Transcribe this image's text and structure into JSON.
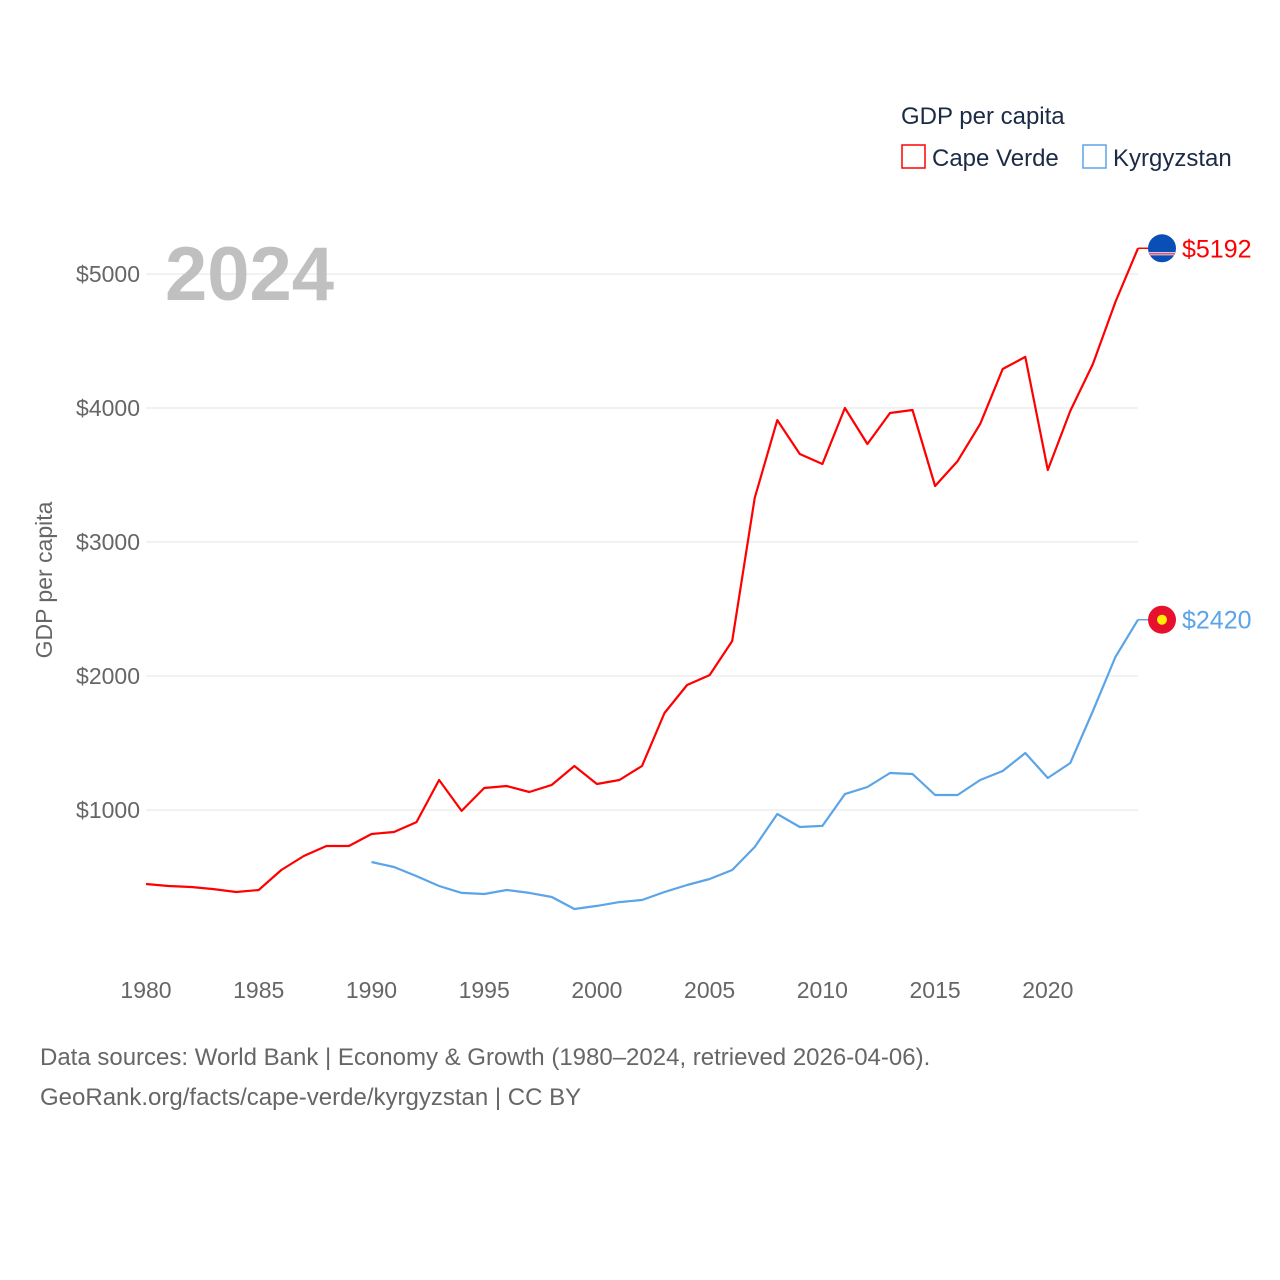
{
  "chart_data": {
    "type": "line",
    "year_label": "2024",
    "ylabel": "GDP per capita",
    "legend_title": "GDP per capita",
    "legend_position": "top-right",
    "ylim": [
      0,
      5400
    ],
    "xlim": [
      1980,
      2024
    ],
    "yticks": [
      1000,
      2000,
      3000,
      4000,
      5000
    ],
    "ytick_labels": [
      "$1000",
      "$2000",
      "$3000",
      "$4000",
      "$5000"
    ],
    "xticks": [
      1980,
      1985,
      1990,
      1995,
      2000,
      2005,
      2010,
      2015,
      2020
    ],
    "xtick_labels": [
      "1980",
      "1985",
      "1990",
      "1995",
      "2000",
      "2005",
      "2010",
      "2015",
      "2020"
    ],
    "grid": true,
    "series": [
      {
        "name": "Cape Verde",
        "color": "#ff0000",
        "end_label": "$5192",
        "x": [
          1980,
          1981,
          1982,
          1983,
          1984,
          1985,
          1986,
          1987,
          1988,
          1989,
          1990,
          1991,
          1992,
          1993,
          1994,
          1995,
          1996,
          1997,
          1998,
          1999,
          2000,
          2001,
          2002,
          2003,
          2004,
          2005,
          2006,
          2007,
          2008,
          2009,
          2010,
          2011,
          2012,
          2013,
          2014,
          2015,
          2016,
          2017,
          2018,
          2019,
          2020,
          2021,
          2022,
          2023,
          2024
        ],
        "values": [
          448,
          433,
          425,
          410,
          388,
          403,
          552,
          657,
          731,
          731,
          821,
          836,
          910,
          1224,
          993,
          1164,
          1179,
          1134,
          1187,
          1328,
          1194,
          1224,
          1328,
          1724,
          1933,
          2007,
          2261,
          3328,
          3910,
          3657,
          3582,
          4000,
          3731,
          3963,
          3985,
          3418,
          3604,
          3881,
          4291,
          4381,
          3537,
          3978,
          4328,
          4791,
          5192
        ]
      },
      {
        "name": "Kyrgyzstan",
        "color": "#5ba4e8",
        "end_label": "$2420",
        "x": [
          1990,
          1991,
          1992,
          1993,
          1994,
          1995,
          1996,
          1997,
          1998,
          1999,
          2000,
          2001,
          2002,
          2003,
          2004,
          2005,
          2006,
          2007,
          2008,
          2009,
          2010,
          2011,
          2012,
          2013,
          2014,
          2015,
          2016,
          2017,
          2018,
          2019,
          2020,
          2021,
          2022,
          2023,
          2024
        ],
        "values": [
          612,
          575,
          507,
          433,
          381,
          373,
          403,
          381,
          351,
          261,
          284,
          313,
          328,
          388,
          440,
          485,
          552,
          724,
          970,
          873,
          881,
          1119,
          1172,
          1276,
          1269,
          1112,
          1112,
          1224,
          1291,
          1425,
          1239,
          1351,
          1739,
          2142,
          2420
        ]
      }
    ]
  },
  "footer": {
    "line1": "Data sources: World Bank | Economy & Growth (1980–2024, retrieved 2026-04-06).",
    "line2": "GeoRank.org/facts/cape-verde/kyrgyzstan | CC BY"
  }
}
